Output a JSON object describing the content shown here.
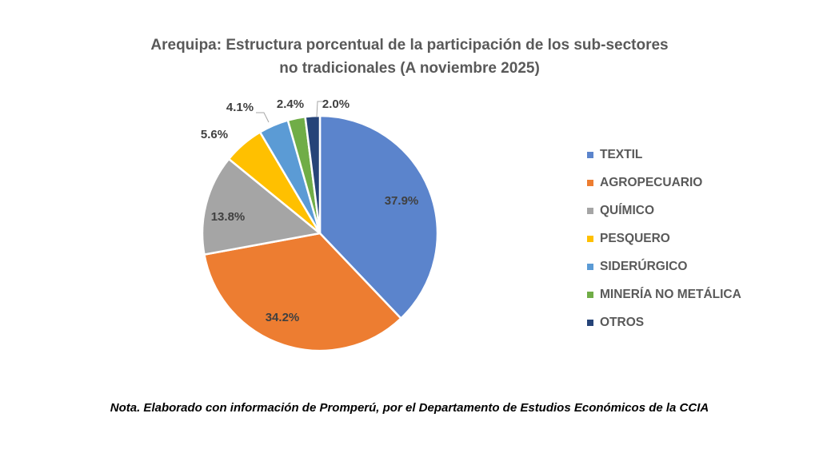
{
  "chart_data": {
    "type": "pie",
    "title_line1": "Arequipa: Estructura porcentual de la participación de los sub-sectores",
    "title_line2": "no tradicionales (A noviembre 2025)",
    "start": "12 o'clock, clockwise",
    "legend_position": "right",
    "slices": [
      {
        "label": "TEXTIL",
        "value": 37.9,
        "display": "37.9%",
        "color": "#5B84CC",
        "label_position": "inside"
      },
      {
        "label": "AGROPECUARIO",
        "value": 34.2,
        "display": "34.2%",
        "color": "#ED7D31",
        "label_position": "inside"
      },
      {
        "label": "QUÍMICO",
        "value": 13.8,
        "display": "13.8%",
        "color": "#A5A5A5",
        "label_position": "inside"
      },
      {
        "label": "PESQUERO",
        "value": 5.6,
        "display": "5.6%",
        "color": "#FFC000",
        "label_position": "outside"
      },
      {
        "label": "SIDERÚRGICO",
        "value": 4.1,
        "display": "4.1%",
        "color": "#5B9BD5",
        "label_position": "outside-leader"
      },
      {
        "label": "MINERÍA NO METÁLICA",
        "value": 2.4,
        "display": "2.4%",
        "color": "#70AD47",
        "label_position": "outside"
      },
      {
        "label": "OTROS",
        "value": 2.0,
        "display": "2.0%",
        "color": "#264478",
        "label_position": "outside-leader"
      }
    ]
  },
  "note": "Nota. Elaborado con información de Promperú, por el Departamento de Estudios Económicos de la CCIA"
}
